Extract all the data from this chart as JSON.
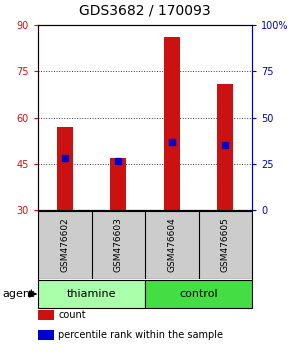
{
  "title": "GDS3682 / 170093",
  "samples": [
    "GSM476602",
    "GSM476603",
    "GSM476604",
    "GSM476605"
  ],
  "bar_bottom": 30,
  "bar_tops": [
    57,
    47,
    86,
    71
  ],
  "percentile_values": [
    47,
    46,
    52,
    51
  ],
  "ylim": [
    30,
    90
  ],
  "yticks_left": [
    30,
    45,
    60,
    75,
    90
  ],
  "yticks_right": [
    0,
    25,
    50,
    75,
    100
  ],
  "bar_color": "#cc1111",
  "percentile_color": "#0000cc",
  "grid_color": "#555555",
  "agent_groups": [
    {
      "label": "thiamine",
      "indices": [
        0,
        1
      ],
      "color": "#aaffaa"
    },
    {
      "label": "control",
      "indices": [
        2,
        3
      ],
      "color": "#44dd44"
    }
  ],
  "sample_bg_color": "#cccccc",
  "legend_items": [
    {
      "label": "count",
      "color": "#cc1111"
    },
    {
      "label": "percentile rank within the sample",
      "color": "#0000cc"
    }
  ],
  "left_axis_color": "#cc1111",
  "right_axis_color": "#0000bb",
  "figsize": [
    2.9,
    3.54
  ],
  "dpi": 100
}
